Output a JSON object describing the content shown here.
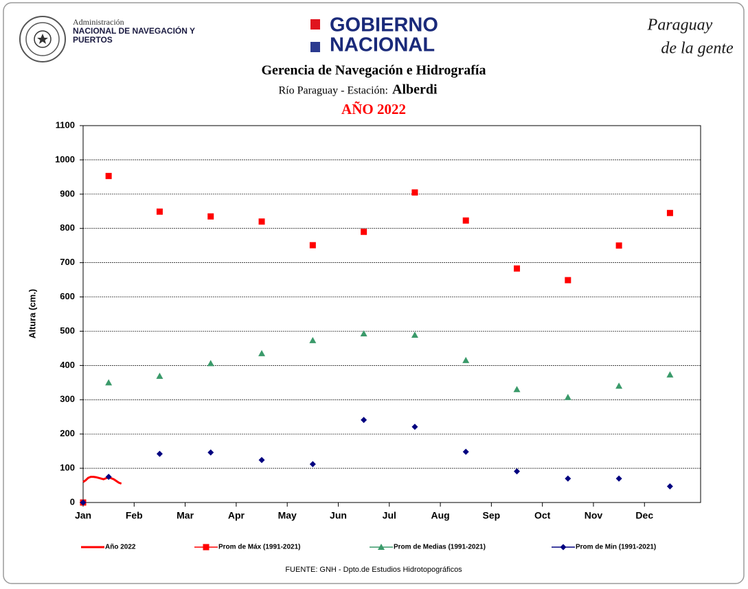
{
  "header": {
    "admin_line1": "Administración",
    "admin_line2": "NACIONAL DE NAVEGACIÓN Y",
    "admin_line3": "PUERTOS",
    "gov_line1": "GOBIERNO",
    "gov_line2": "NACIONAL",
    "slogan_line1": "Paraguay",
    "slogan_line2": "de la gente"
  },
  "chart_data": {
    "type": "scatter",
    "title": "Gerencia de Navegación e Hidrografía",
    "subtitle": "Río Paraguay  -  Estación:",
    "station": "Alberdi",
    "year_label": "AÑO 2022",
    "y_label": "Altura (cm.)",
    "source": "FUENTE:  GNH  - Dpto.de Estudios Hidrotopográficos",
    "xlim": [
      0,
      12.1
    ],
    "xticks": [
      {
        "value": 0,
        "label": "Jan"
      },
      {
        "value": 1,
        "label": "Feb"
      },
      {
        "value": 2,
        "label": "Mar"
      },
      {
        "value": 3,
        "label": "Apr"
      },
      {
        "value": 4,
        "label": "May"
      },
      {
        "value": 5,
        "label": "Jun"
      },
      {
        "value": 6,
        "label": "Jul"
      },
      {
        "value": 7,
        "label": "Aug"
      },
      {
        "value": 8,
        "label": "Sep"
      },
      {
        "value": 9,
        "label": "Oct"
      },
      {
        "value": 10,
        "label": "Nov"
      },
      {
        "value": 11,
        "label": "Dec"
      }
    ],
    "ylim": [
      0,
      1100
    ],
    "yticks": [
      0,
      100,
      200,
      300,
      400,
      500,
      600,
      700,
      800,
      900,
      1000,
      1100
    ],
    "grid": true,
    "series": [
      {
        "name": "Año 2022",
        "color": "#ff0000",
        "marker": "none",
        "x": [
          0,
          0.05,
          0.1,
          0.15,
          0.2,
          0.25,
          0.3,
          0.35,
          0.4,
          0.45,
          0.5,
          0.55,
          0.6,
          0.65,
          0.7,
          0.75
        ],
        "values": [
          60,
          65,
          72,
          75,
          75,
          74,
          72,
          70,
          68,
          71,
          73,
          71,
          68,
          63,
          58,
          55
        ]
      },
      {
        "name": "Prom de Máx (1991-2021)",
        "color": "#ff0000",
        "marker": "square",
        "x": [
          0,
          0.5,
          1.5,
          2.5,
          3.5,
          4.5,
          5.5,
          6.5,
          7.5,
          8.5,
          9.5,
          10.5,
          11.5
        ],
        "values": [
          0,
          953,
          849,
          835,
          820,
          751,
          790,
          905,
          823,
          683,
          649,
          750,
          845
        ]
      },
      {
        "name": "Prom de Medias (1991-2021)",
        "color": "#3a9a6a",
        "marker": "triangle",
        "x": [
          0.5,
          1.5,
          2.5,
          3.5,
          4.5,
          5.5,
          6.5,
          7.5,
          8.5,
          9.5,
          10.5,
          11.5
        ],
        "values": [
          350,
          369,
          406,
          435,
          473,
          493,
          489,
          415,
          330,
          307,
          340,
          373
        ]
      },
      {
        "name": "Prom de Min (1991-2021)",
        "color": "#000080",
        "marker": "diamond",
        "x": [
          0,
          0.5,
          1.5,
          2.5,
          3.5,
          4.5,
          5.5,
          6.5,
          7.5,
          8.5,
          9.5,
          10.5,
          11.5
        ],
        "values": [
          0,
          75,
          142,
          146,
          124,
          112,
          241,
          221,
          148,
          91,
          70,
          70,
          47
        ]
      }
    ]
  }
}
